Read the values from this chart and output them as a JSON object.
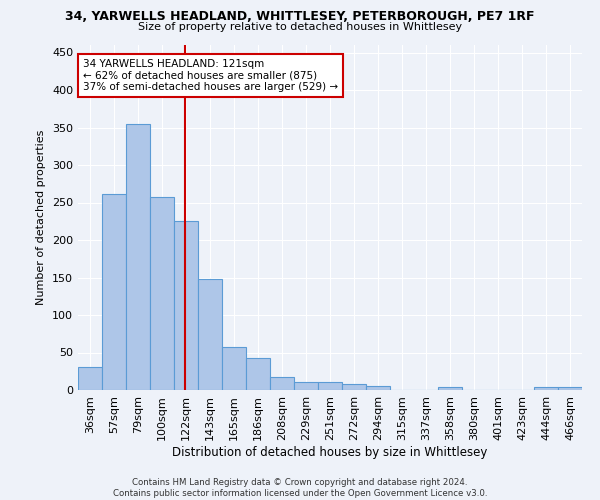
{
  "title1": "34, YARWELLS HEADLAND, WHITTLESEY, PETERBOROUGH, PE7 1RF",
  "title2": "Size of property relative to detached houses in Whittlesey",
  "xlabel": "Distribution of detached houses by size in Whittlesey",
  "ylabel": "Number of detached properties",
  "categories": [
    "36sqm",
    "57sqm",
    "79sqm",
    "100sqm",
    "122sqm",
    "143sqm",
    "165sqm",
    "186sqm",
    "208sqm",
    "229sqm",
    "251sqm",
    "272sqm",
    "294sqm",
    "315sqm",
    "337sqm",
    "358sqm",
    "380sqm",
    "401sqm",
    "423sqm",
    "444sqm",
    "466sqm"
  ],
  "values": [
    31,
    261,
    355,
    258,
    225,
    148,
    57,
    43,
    18,
    11,
    11,
    8,
    5,
    0,
    0,
    4,
    0,
    0,
    0,
    4,
    4
  ],
  "bar_color": "#aec6e8",
  "bar_edge_color": "#5b9bd5",
  "vline_color": "#cc0000",
  "annotation_text": "34 YARWELLS HEADLAND: 121sqm\n← 62% of detached houses are smaller (875)\n37% of semi-detached houses are larger (529) →",
  "annotation_box_color": "#ffffff",
  "annotation_box_edge": "#cc0000",
  "footer": "Contains HM Land Registry data © Crown copyright and database right 2024.\nContains public sector information licensed under the Open Government Licence v3.0.",
  "ylim": [
    0,
    460
  ],
  "background_color": "#eef2f9",
  "grid_color": "#ffffff"
}
